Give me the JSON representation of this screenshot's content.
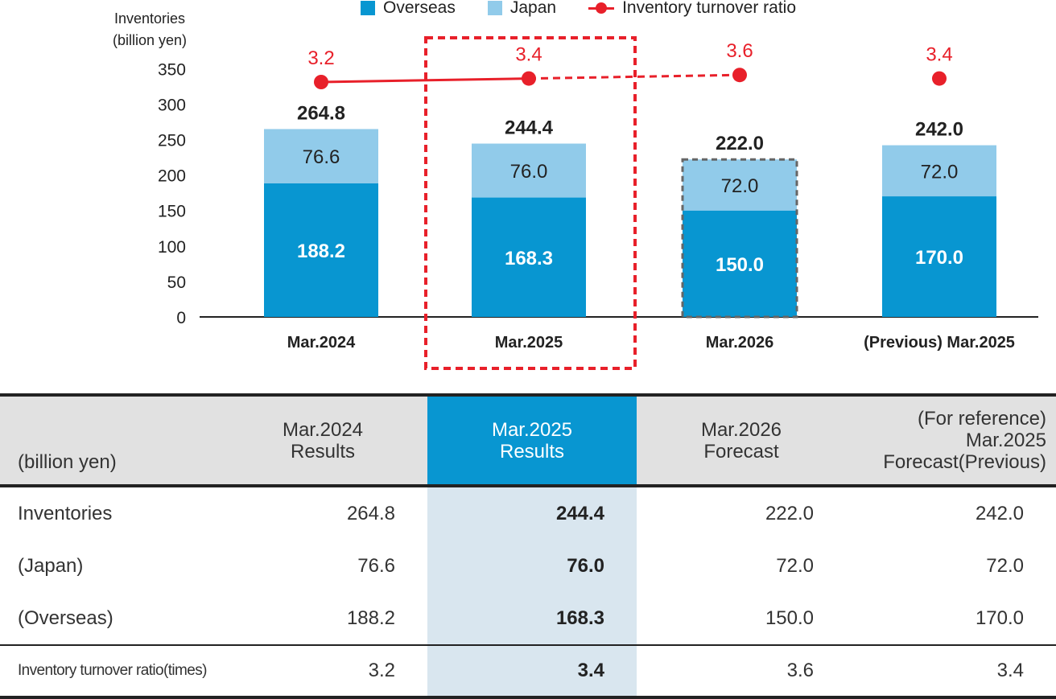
{
  "chart_data": {
    "type": "bar",
    "stacked": true,
    "y_axis_title_line1": "Inventories",
    "y_axis_title_line2": "(billion yen)",
    "ylim": [
      0,
      350
    ],
    "yticks": [
      0,
      50,
      100,
      150,
      200,
      250,
      300,
      350
    ],
    "categories": [
      "Mar.2024",
      "Mar.2025",
      "Mar.2026",
      "(Previous) Mar.2025"
    ],
    "series": [
      {
        "name": "Overseas",
        "color": "#0896d1",
        "values": [
          188.2,
          168.3,
          150.0,
          170.0
        ]
      },
      {
        "name": "Japan",
        "color": "#91cbea",
        "values": [
          76.6,
          76.0,
          72.0,
          72.0
        ]
      }
    ],
    "totals": [
      "264.8",
      "244.4",
      "222.0",
      "242.0"
    ],
    "overseas_labels": [
      "188.2",
      "168.3",
      "150.0",
      "170.0"
    ],
    "japan_labels": [
      "76.6",
      "76.0",
      "72.0",
      "72.0"
    ],
    "line_series": {
      "name": "Inventory turnover ratio",
      "color": "#e8202a",
      "values": [
        3.2,
        3.4,
        3.6,
        3.4
      ],
      "labels": [
        "3.2",
        "3.4",
        "3.6",
        "3.4"
      ]
    },
    "highlighted_category": "Mar.2025",
    "forecast_category": "Mar.2026",
    "legend_position": "top"
  },
  "table": {
    "unit_label": "(billion yen)",
    "columns": [
      {
        "lines": [
          "Mar.2024",
          "Results"
        ]
      },
      {
        "lines": [
          "Mar.2025",
          "Results"
        ]
      },
      {
        "lines": [
          "Mar.2026",
          "Forecast"
        ]
      },
      {
        "lines": [
          "(For reference)",
          "Mar.2025",
          "Forecast(Previous)"
        ]
      }
    ],
    "rows": [
      {
        "label": "Inventories",
        "values": [
          "264.8",
          "244.4",
          "222.0",
          "242.0"
        ]
      },
      {
        "label": "(Japan)",
        "values": [
          "76.6",
          "76.0",
          "72.0",
          "72.0"
        ]
      },
      {
        "label": "(Overseas)",
        "values": [
          "188.2",
          "168.3",
          "150.0",
          "170.0"
        ]
      },
      {
        "label": "Inventory turnover ratio(times)",
        "values": [
          "3.2",
          "3.4",
          "3.6",
          "3.4"
        ]
      }
    ]
  }
}
